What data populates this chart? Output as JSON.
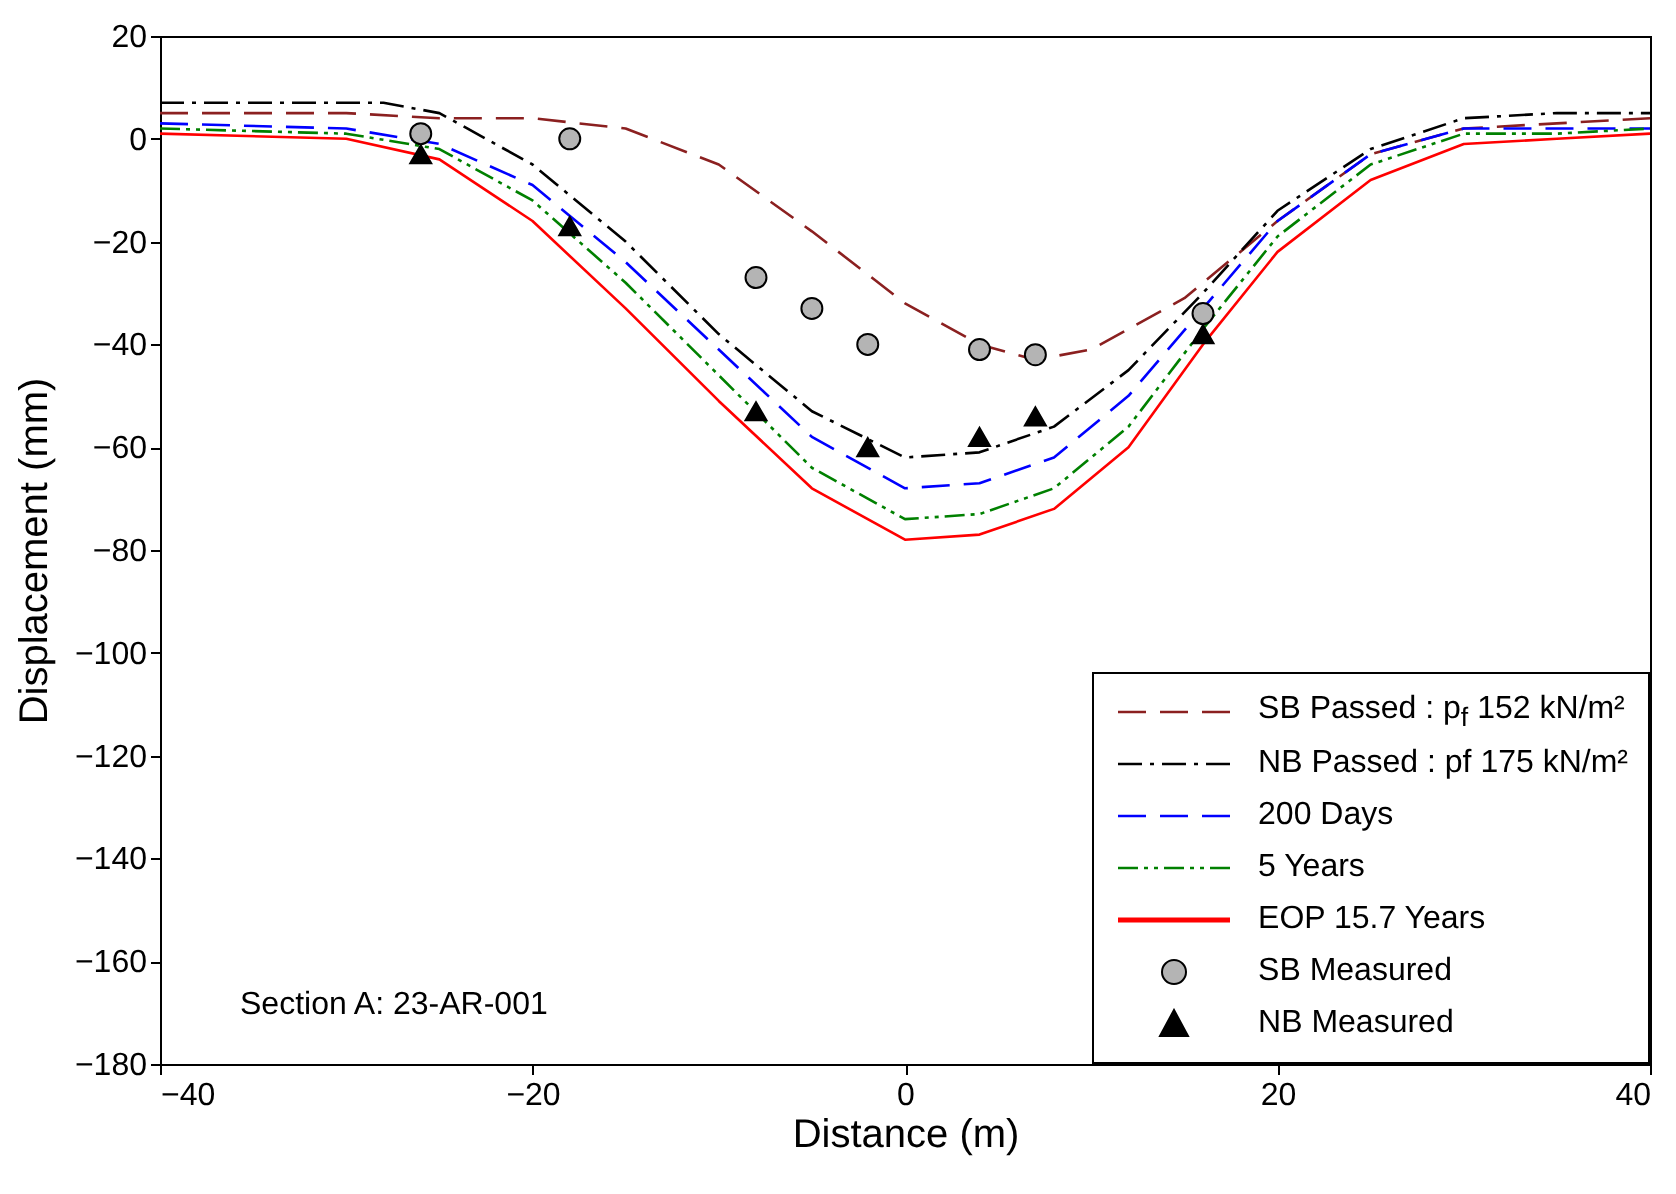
{
  "chart_data": {
    "type": "line",
    "xlabel": "Distance (m)",
    "ylabel": "Displacement (mm)",
    "xlim": [
      -40,
      40
    ],
    "xticks": [
      -40,
      -20,
      0,
      20,
      40
    ],
    "ylim": [
      -180,
      20
    ],
    "yticks": [
      -180,
      -160,
      -140,
      -120,
      -100,
      -80,
      -60,
      -40,
      -20,
      0,
      20
    ],
    "grid": false,
    "legend": "bottom right",
    "annotations": [
      "Section A: 23-AR-001"
    ],
    "series": [
      {
        "name": "SB Passed : p$_{f}$ 152 kN/m²",
        "color": "#8b2020",
        "line_style": "dashed",
        "x": [
          -40,
          -30,
          -25,
          -20,
          -15,
          -10,
          -5,
          0,
          4,
          7,
          10,
          15,
          20,
          25,
          30,
          35,
          40
        ],
        "values": [
          5,
          5,
          4,
          4,
          2,
          -5,
          -18,
          -32,
          -40,
          -43,
          -41,
          -31,
          -16,
          -3,
          2,
          3,
          4
        ]
      },
      {
        "name": "NB Passed : pf 175 kN/m²",
        "color": "#000000",
        "line_style": "dashdot",
        "x": [
          -40,
          -28,
          -25,
          -20,
          -15,
          -10,
          -5,
          0,
          4,
          8,
          12,
          16,
          20,
          25,
          30,
          35,
          40
        ],
        "values": [
          7,
          7,
          5,
          -5,
          -20,
          -38,
          -53,
          -62,
          -61,
          -56,
          -45,
          -30,
          -14,
          -2,
          4,
          5,
          5
        ]
      },
      {
        "name": "200 Days",
        "color": "#0000ff",
        "line_style": "dashed",
        "x": [
          -40,
          -30,
          -25,
          -20,
          -15,
          -10,
          -5,
          0,
          4,
          8,
          12,
          16,
          20,
          25,
          30,
          35,
          40
        ],
        "values": [
          3,
          2,
          -1,
          -9,
          -24,
          -41,
          -58,
          -68,
          -67,
          -62,
          -50,
          -33,
          -16,
          -3,
          2,
          2,
          2
        ]
      },
      {
        "name": "5 Years",
        "color": "#008000",
        "line_style": "dashdotdot",
        "x": [
          -40,
          -30,
          -25,
          -20,
          -15,
          -10,
          -5,
          0,
          4,
          8,
          12,
          16,
          20,
          25,
          30,
          35,
          40
        ],
        "values": [
          2,
          1,
          -2,
          -12,
          -28,
          -46,
          -64,
          -74,
          -73,
          -68,
          -56,
          -37,
          -19,
          -5,
          1,
          1,
          2
        ]
      },
      {
        "name": "EOP 15.7 Years",
        "color": "#ff0000",
        "line_style": "solid",
        "x": [
          -40,
          -30,
          -25,
          -20,
          -15,
          -10,
          -5,
          0,
          4,
          8,
          12,
          16,
          20,
          25,
          30,
          35,
          40
        ],
        "values": [
          1,
          0,
          -4,
          -16,
          -33,
          -51,
          -68,
          -78,
          -77,
          -72,
          -60,
          -40,
          -22,
          -8,
          -1,
          0,
          1
        ]
      },
      {
        "name": "SB Measured",
        "type": "scatter",
        "marker": "circle",
        "color": "#b4b4b4",
        "x": [
          -26,
          -18,
          -8,
          -5,
          -2,
          4,
          7,
          16
        ],
        "values": [
          1,
          0,
          -27,
          -33,
          -40,
          -41,
          -42,
          -34
        ]
      },
      {
        "name": "NB Measured",
        "type": "scatter",
        "marker": "triangle",
        "color": "#000000",
        "x": [
          -26,
          -18,
          -8,
          -2,
          4,
          7,
          16
        ],
        "values": [
          -3,
          -17,
          -53,
          -60,
          -58,
          -54,
          -38
        ]
      }
    ]
  }
}
